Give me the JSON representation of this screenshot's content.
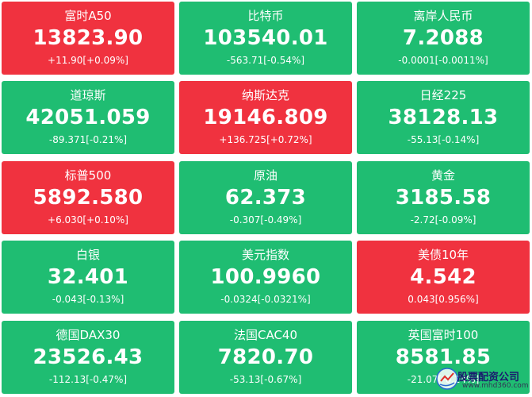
{
  "colors": {
    "up": "#f0323f",
    "down": "#1fbd72",
    "text": "#ffffff"
  },
  "tiles": [
    {
      "name": "富时A50",
      "price": "13823.90",
      "change": "+11.90[+0.09%]",
      "trend": "up"
    },
    {
      "name": "比特币",
      "price": "103540.01",
      "change": "-563.71[-0.54%]",
      "trend": "down"
    },
    {
      "name": "离岸人民币",
      "price": "7.2088",
      "change": "-0.0001[-0.0011%]",
      "trend": "down"
    },
    {
      "name": "道琼斯",
      "price": "42051.059",
      "change": "-89.371[-0.21%]",
      "trend": "down"
    },
    {
      "name": "纳斯达克",
      "price": "19146.809",
      "change": "+136.725[+0.72%]",
      "trend": "up"
    },
    {
      "name": "日经225",
      "price": "38128.13",
      "change": "-55.13[-0.14%]",
      "trend": "down"
    },
    {
      "name": "标普500",
      "price": "5892.580",
      "change": "+6.030[+0.10%]",
      "trend": "up"
    },
    {
      "name": "原油",
      "price": "62.373",
      "change": "-0.307[-0.49%]",
      "trend": "down"
    },
    {
      "name": "黄金",
      "price": "3185.58",
      "change": "-2.72[-0.09%]",
      "trend": "down"
    },
    {
      "name": "白银",
      "price": "32.401",
      "change": "-0.043[-0.13%]",
      "trend": "down"
    },
    {
      "name": "美元指数",
      "price": "100.9960",
      "change": "-0.0324[-0.0321%]",
      "trend": "down"
    },
    {
      "name": "美债10年",
      "price": "4.542",
      "change": "0.043[0.956%]",
      "trend": "up"
    },
    {
      "name": "德国DAX30",
      "price": "23526.43",
      "change": "-112.13[-0.47%]",
      "trend": "down"
    },
    {
      "name": "法国CAC40",
      "price": "7820.70",
      "change": "-53.13[-0.67%]",
      "trend": "down"
    },
    {
      "name": "英国富时100",
      "price": "8581.85",
      "change": "-21.07[-0.24%]",
      "trend": "down"
    }
  ],
  "watermark": {
    "title": "股票配资公司",
    "url": "www.mhd360.com"
  }
}
